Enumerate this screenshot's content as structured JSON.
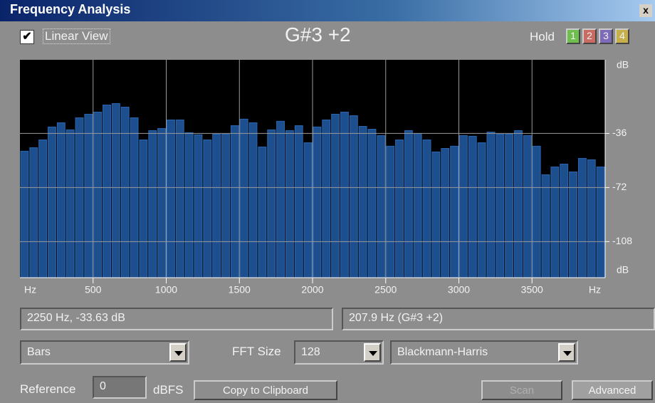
{
  "window": {
    "title": "Frequency Analysis",
    "close": "x"
  },
  "toolbar": {
    "linear_view": "Linear View",
    "note": "G#3 +2",
    "hold": "Hold",
    "hold_buttons": [
      "1",
      "2",
      "3",
      "4"
    ]
  },
  "status": {
    "cursor": "2250 Hz, -33.63 dB",
    "peak": "207.9 Hz (G#3 +2)"
  },
  "controls": {
    "display": "Bars",
    "fft_label": "FFT Size",
    "fft_size": "128",
    "window_fn": "Blackmann-Harris",
    "reference_label": "Reference",
    "reference": "0",
    "unit": "dBFS",
    "copy": "Copy to Clipboard",
    "scan": "Scan",
    "advanced": "Advanced"
  },
  "chart_data": {
    "type": "histogram",
    "x_label_left": "Hz",
    "x_label_right": "Hz",
    "y_label_top": "dB",
    "y_label_bottom": "dB",
    "bins": [
      0,
      62.5,
      125,
      187.5,
      250,
      312.5,
      375,
      437.5,
      500,
      562.5,
      625,
      687.5,
      750,
      812.5,
      875,
      937.5,
      1000,
      1062.5,
      1125,
      1187.5,
      1250,
      1312.5,
      1375,
      1437.5,
      1500,
      1562.5,
      1625,
      1687.5,
      1750,
      1812.5,
      1875,
      1937.5,
      2000,
      2062.5,
      2125,
      2187.5,
      2250,
      2312.5,
      2375,
      2437.5,
      2500,
      2562.5,
      2625,
      2687.5,
      2750,
      2812.5,
      2875,
      2937.5,
      3000,
      3062.5,
      3125,
      3187.5,
      3250,
      3312.5,
      3375,
      3437.5,
      3500,
      3562.5,
      3625,
      3687.5,
      3750,
      3812.5,
      3875,
      3937.5,
      4000
    ],
    "values": [
      -47.8,
      -45.5,
      -40.3,
      -31.7,
      -28.9,
      -33.6,
      -25.6,
      -23.2,
      -21.8,
      -17.1,
      -16.1,
      -18.5,
      -25.6,
      -40.3,
      -34.1,
      -32.7,
      -27.0,
      -27.0,
      -35.5,
      -36.9,
      -40.3,
      -36.5,
      -36.5,
      -30.8,
      -26.5,
      -28.9,
      -45.0,
      -33.6,
      -27.9,
      -34.1,
      -30.8,
      -42.2,
      -31.7,
      -27.0,
      -23.2,
      -21.8,
      -24.2,
      -31.3,
      -33.2,
      -37.4,
      -44.5,
      -40.3,
      -34.1,
      -36.0,
      -40.3,
      -48.3,
      -46.0,
      -44.5,
      -37.4,
      -37.9,
      -42.2,
      -35.1,
      -36.5,
      -36.5,
      -34.1,
      -37.4,
      -44.5,
      -63.5,
      -58.3,
      -56.4,
      -61.6,
      -52.6,
      -53.5,
      -58.3
    ],
    "color": "#1d4f8f",
    "xlim": [
      0,
      4000
    ],
    "xticks": [
      500,
      1000,
      1500,
      2000,
      2500,
      3000,
      3500
    ],
    "ylim": [
      -132,
      13
    ],
    "yticks": [
      -36,
      -72,
      -108
    ],
    "grid": true
  }
}
